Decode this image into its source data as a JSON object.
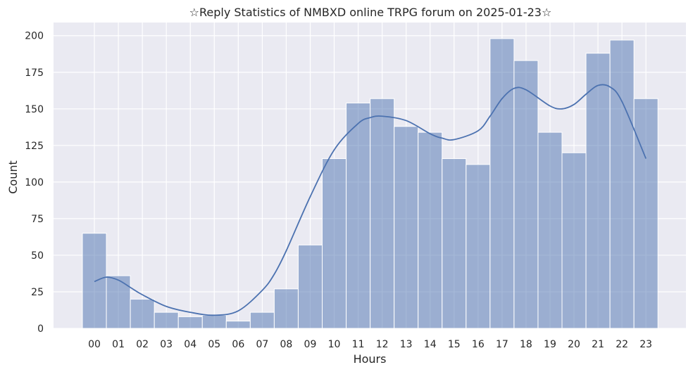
{
  "chart_data": {
    "type": "bar",
    "title": "☆Reply Statistics of NMBXD online TRPG forum on 2025-01-23☆",
    "xlabel": "Hours",
    "ylabel": "Count",
    "categories": [
      "00",
      "01",
      "02",
      "03",
      "04",
      "05",
      "06",
      "07",
      "08",
      "09",
      "10",
      "11",
      "12",
      "13",
      "14",
      "15",
      "16",
      "17",
      "18",
      "19",
      "20",
      "21",
      "22",
      "23"
    ],
    "series": [
      {
        "values": [
          65,
          36,
          20,
          11,
          8,
          9,
          5,
          11,
          27,
          57,
          116,
          154,
          157,
          138,
          134,
          116,
          112,
          198,
          183,
          134,
          120,
          188,
          197,
          157
        ]
      }
    ],
    "kde": {
      "x": [
        0,
        0.5,
        1,
        1.5,
        2,
        3,
        4,
        5,
        6,
        7,
        7.5,
        8,
        9,
        10,
        11,
        11.5,
        12,
        13,
        14,
        14.5,
        15,
        16,
        16.5,
        17,
        17.5,
        18,
        19,
        19.5,
        20,
        20.5,
        21,
        21.5,
        22,
        23
      ],
      "y": [
        32,
        35,
        33,
        28,
        23,
        15,
        11,
        9,
        12,
        26,
        37,
        53,
        90,
        122,
        140,
        144,
        145,
        142,
        133,
        130,
        129,
        135,
        145,
        157,
        164,
        163,
        152,
        150,
        153,
        160,
        166,
        165,
        155,
        116
      ]
    },
    "yticks": [
      0,
      25,
      50,
      75,
      100,
      125,
      150,
      175,
      200
    ],
    "ylim": [
      0,
      209
    ],
    "grid": true,
    "colors": {
      "background": "#eaeaf2",
      "grid": "#ffffff",
      "bar_fill": "#4c72b0",
      "bar_fill_opacity": 0.5,
      "bar_edge": "#ffffff",
      "kde_line": "#4c72b0"
    }
  }
}
